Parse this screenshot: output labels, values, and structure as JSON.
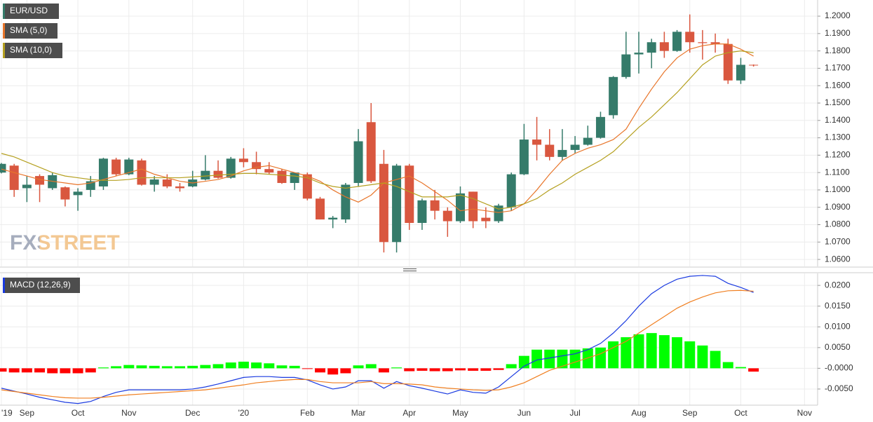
{
  "chart_data": [
    {
      "type": "candlestick",
      "watermark": "FXSTREET",
      "ylim": [
        1.056,
        1.2093
      ],
      "yticks": [
        {
          "value": 1.06,
          "label": "1.0600"
        },
        {
          "value": 1.07,
          "label": "1.0700"
        },
        {
          "value": 1.08,
          "label": "1.0800"
        },
        {
          "value": 1.09,
          "label": "1.0900"
        },
        {
          "value": 1.1,
          "label": "1.1000"
        },
        {
          "value": 1.11,
          "label": "1.1100"
        },
        {
          "value": 1.12,
          "label": "1.1200"
        },
        {
          "value": 1.13,
          "label": "1.1300"
        },
        {
          "value": 1.14,
          "label": "1.1400"
        },
        {
          "value": 1.15,
          "label": "1.1500"
        },
        {
          "value": 1.16,
          "label": "1.1600"
        },
        {
          "value": 1.17,
          "label": "1.1700"
        },
        {
          "value": 1.18,
          "label": "1.1800"
        },
        {
          "value": 1.19,
          "label": "1.1900"
        },
        {
          "value": 1.2,
          "label": "1.2000"
        }
      ],
      "grid": true,
      "series": [
        {
          "name": "EUR/USD",
          "type": "candlestick",
          "up_color": "#357b6a",
          "down_color": "#d9573f",
          "open": [
            1.11,
            1.114,
            1.101,
            1.108,
            1.101,
            1.1015,
            1.097,
            1.1,
            1.102,
            1.1175,
            1.109,
            1.117,
            1.103,
            1.106,
            1.102,
            1.102,
            1.106,
            1.111,
            1.107,
            1.118,
            1.116,
            1.112,
            1.111,
            1.104,
            1.109,
            1.095,
            1.083,
            1.083,
            1.104,
            1.139,
            1.115,
            1.07,
            1.114,
            1.081,
            1.094,
            1.088,
            1.082,
            1.099,
            1.084,
            1.082,
            1.09,
            1.109,
            1.129,
            1.126,
            1.119,
            1.123,
            1.126,
            1.13,
            1.143,
            1.165,
            1.178,
            1.179,
            1.185,
            1.18,
            1.191,
            1.185,
            1.185,
            1.184,
            1.163,
            1.172,
            null,
            null,
            null,
            null
          ],
          "high": [
            1.1155,
            1.115,
            1.108,
            1.109,
            1.11,
            1.102,
            1.101,
            1.108,
            1.1185,
            1.1185,
            1.1185,
            1.118,
            1.108,
            1.109,
            1.104,
            1.111,
            1.12,
            1.117,
            1.119,
            1.124,
            1.122,
            1.116,
            1.112,
            1.11,
            1.11,
            1.096,
            1.085,
            1.104,
            1.135,
            1.15,
            1.123,
            1.115,
            1.115,
            1.095,
            1.1,
            1.09,
            1.102,
            1.099,
            1.09,
            1.092,
            1.11,
            1.138,
            1.142,
            1.135,
            1.135,
            1.131,
            1.137,
            1.145,
            1.1655,
            1.191,
            1.191,
            1.187,
            1.191,
            1.192,
            1.201,
            1.192,
            1.19,
            1.187,
            1.176,
            1.1722,
            null,
            null,
            null,
            null
          ],
          "low": [
            1.1095,
            1.096,
            1.093,
            1.093,
            1.1,
            1.0905,
            1.088,
            1.096,
            1.1,
            1.108,
            1.1085,
            1.1025,
            1.099,
            1.101,
            1.099,
            1.1015,
            1.1055,
            1.1065,
            1.1065,
            1.113,
            1.109,
            1.109,
            1.1035,
            1.1,
            1.094,
            1.083,
            1.078,
            1.081,
            1.102,
            1.104,
            1.064,
            1.064,
            1.077,
            1.077,
            1.083,
            1.073,
            1.081,
            1.078,
            1.078,
            1.081,
            1.088,
            1.1085,
            1.117,
            1.117,
            1.117,
            1.121,
            1.1255,
            1.1295,
            1.141,
            1.164,
            1.167,
            1.17,
            1.176,
            1.1795,
            1.179,
            1.175,
            1.179,
            1.161,
            1.161,
            1.171,
            null,
            null,
            null,
            null
          ],
          "close": [
            1.115,
            1.1,
            1.103,
            1.103,
            1.1085,
            1.0945,
            1.099,
            1.105,
            1.118,
            1.109,
            1.1175,
            1.103,
            1.106,
            1.102,
            1.101,
            1.106,
            1.111,
            1.107,
            1.118,
            1.116,
            1.112,
            1.11,
            1.104,
            1.11,
            1.095,
            1.083,
            1.084,
            1.103,
            1.128,
            1.105,
            1.07,
            1.114,
            1.081,
            1.094,
            1.088,
            1.082,
            1.098,
            1.082,
            1.082,
            1.091,
            1.109,
            1.129,
            1.126,
            1.119,
            1.123,
            1.126,
            1.13,
            1.142,
            1.165,
            1.178,
            1.179,
            1.185,
            1.18,
            1.191,
            1.185,
            1.1845,
            1.184,
            1.163,
            1.172,
            1.1718,
            null,
            null,
            null,
            null
          ]
        },
        {
          "name": "SMA (5,0)",
          "type": "line",
          "color": "#e8752a",
          "values": [
            1.112,
            1.11,
            1.108,
            1.106,
            1.105,
            1.104,
            1.103,
            1.104,
            1.106,
            1.108,
            1.11,
            1.112,
            1.109,
            1.107,
            1.105,
            1.104,
            1.105,
            1.106,
            1.108,
            1.111,
            1.113,
            1.114,
            1.112,
            1.11,
            1.108,
            1.105,
            1.1,
            1.096,
            1.093,
            1.097,
            1.104,
            1.106,
            1.108,
            1.104,
            1.099,
            1.094,
            1.088,
            1.089,
            1.088,
            1.087,
            1.088,
            1.092,
            1.1,
            1.109,
            1.117,
            1.121,
            1.124,
            1.126,
            1.129,
            1.135,
            1.147,
            1.158,
            1.168,
            1.176,
            1.181,
            1.183,
            1.184,
            1.184,
            1.181,
            1.177,
            null,
            null,
            null,
            null
          ]
        },
        {
          "name": "SMA (10,0)",
          "type": "line",
          "color": "#b5a020",
          "values": [
            1.121,
            1.119,
            1.116,
            1.113,
            1.11,
            1.108,
            1.107,
            1.106,
            1.1055,
            1.1055,
            1.106,
            1.107,
            1.107,
            1.107,
            1.107,
            1.1075,
            1.108,
            1.1085,
            1.109,
            1.1095,
            1.1095,
            1.109,
            1.1085,
            1.108,
            1.107,
            1.104,
            1.102,
            1.101,
            1.102,
            1.103,
            1.104,
            1.102,
            1.099,
            1.096,
            1.096,
            1.096,
            1.097,
            1.095,
            1.092,
            1.089,
            1.09,
            1.092,
            1.095,
            1.1,
            1.104,
            1.109,
            1.113,
            1.117,
            1.122,
            1.129,
            1.136,
            1.142,
            1.149,
            1.156,
            1.164,
            1.172,
            1.177,
            1.179,
            1.18,
            1.179,
            null,
            null,
            null,
            null
          ]
        }
      ]
    },
    {
      "type": "macd",
      "categories": [
        "'19",
        null,
        "Sep",
        null,
        null,
        null,
        "Oct",
        null,
        null,
        null,
        "Nov",
        null,
        null,
        null,
        null,
        "Dec",
        null,
        null,
        null,
        "'20",
        null,
        null,
        null,
        null,
        "Feb",
        null,
        null,
        null,
        "Mar",
        null,
        null,
        null,
        "Apr",
        null,
        null,
        null,
        "May",
        null,
        null,
        null,
        null,
        "Jun",
        null,
        null,
        null,
        "Jul",
        null,
        null,
        null,
        null,
        "Aug",
        null,
        null,
        null,
        "Sep",
        null,
        null,
        null,
        "Oct",
        null,
        null,
        null,
        null,
        "Nov"
      ],
      "ylim": [
        -0.0089,
        0.0229
      ],
      "yticks": [
        {
          "value": 0.02,
          "label": "0.0200"
        },
        {
          "value": 0.015,
          "label": "0.0150"
        },
        {
          "value": 0.01,
          "label": "0.0100"
        },
        {
          "value": 0.005,
          "label": "0.0050"
        },
        {
          "value": 0,
          "label": "-0.0000"
        },
        {
          "value": -0.005,
          "label": "-0.0050"
        }
      ],
      "grid": true,
      "series": [
        {
          "type": "bar",
          "up_color": "#00ff00",
          "down_color": "#ff0000",
          "values": [
            -0.0008,
            -0.001,
            -0.001,
            -0.001,
            -0.0012,
            -0.0012,
            -0.0012,
            -0.001,
            0.0002,
            0.0005,
            0.0008,
            0.0007,
            0.0006,
            0.0005,
            0.0005,
            0.0006,
            0.0008,
            0.001,
            0.0014,
            0.0016,
            0.0014,
            0.0012,
            0.0007,
            0.0006,
            -0.0001,
            -0.001,
            -0.0015,
            -0.0012,
            0.0007,
            0.001,
            -0.001,
            0.0002,
            -0.0007,
            -0.0006,
            -0.0007,
            -0.0007,
            -0.0005,
            -0.0006,
            -0.0006,
            -0.0004,
            0.001,
            0.003,
            0.0045,
            0.0045,
            0.0045,
            0.0045,
            0.0048,
            0.005,
            0.0065,
            0.0075,
            0.0082,
            0.0085,
            0.008,
            0.0075,
            0.0065,
            0.0055,
            0.0042,
            0.0015,
            0.0003,
            -0.0008,
            null,
            null,
            null,
            null
          ]
        },
        {
          "name": "MACD (12,26,9)",
          "type": "line",
          "color": "#1a3ae0",
          "values": [
            -0.0048,
            -0.0055,
            -0.0062,
            -0.007,
            -0.0076,
            -0.0082,
            -0.0085,
            -0.008,
            -0.0068,
            -0.0058,
            -0.0052,
            -0.0052,
            -0.0052,
            -0.0052,
            -0.0052,
            -0.005,
            -0.0045,
            -0.0038,
            -0.003,
            -0.0022,
            -0.002,
            -0.002,
            -0.0022,
            -0.0022,
            -0.0028,
            -0.004,
            -0.005,
            -0.0045,
            -0.003,
            -0.003,
            -0.0048,
            -0.0032,
            -0.0042,
            -0.0048,
            -0.0055,
            -0.0062,
            -0.0052,
            -0.0058,
            -0.006,
            -0.0045,
            -0.002,
            0.0005,
            0.002,
            0.0025,
            0.003,
            0.0035,
            0.0045,
            0.006,
            0.0085,
            0.0115,
            0.015,
            0.018,
            0.02,
            0.0215,
            0.0222,
            0.0224,
            0.0222,
            0.0205,
            0.0195,
            0.0183,
            null,
            null,
            null,
            null
          ]
        },
        {
          "type": "line",
          "color": "#f07f20",
          "values": [
            -0.0052,
            -0.0056,
            -0.006,
            -0.0064,
            -0.0068,
            -0.0071,
            -0.0072,
            -0.0072,
            -0.007,
            -0.0067,
            -0.0064,
            -0.0062,
            -0.006,
            -0.0058,
            -0.0056,
            -0.0054,
            -0.0052,
            -0.0048,
            -0.0044,
            -0.004,
            -0.0035,
            -0.0032,
            -0.0029,
            -0.0027,
            -0.0027,
            -0.0032,
            -0.0035,
            -0.0035,
            -0.0035,
            -0.0032,
            -0.0037,
            -0.0037,
            -0.0038,
            -0.004,
            -0.0045,
            -0.0048,
            -0.005,
            -0.0052,
            -0.0053,
            -0.0052,
            -0.0045,
            -0.0035,
            -0.002,
            -0.0005,
            0.0005,
            0.0015,
            0.0025,
            0.0035,
            0.005,
            0.0065,
            0.0085,
            0.0105,
            0.0125,
            0.0145,
            0.016,
            0.0172,
            0.0182,
            0.0187,
            0.0188,
            0.0186,
            null,
            null,
            null,
            null
          ]
        }
      ]
    }
  ]
}
